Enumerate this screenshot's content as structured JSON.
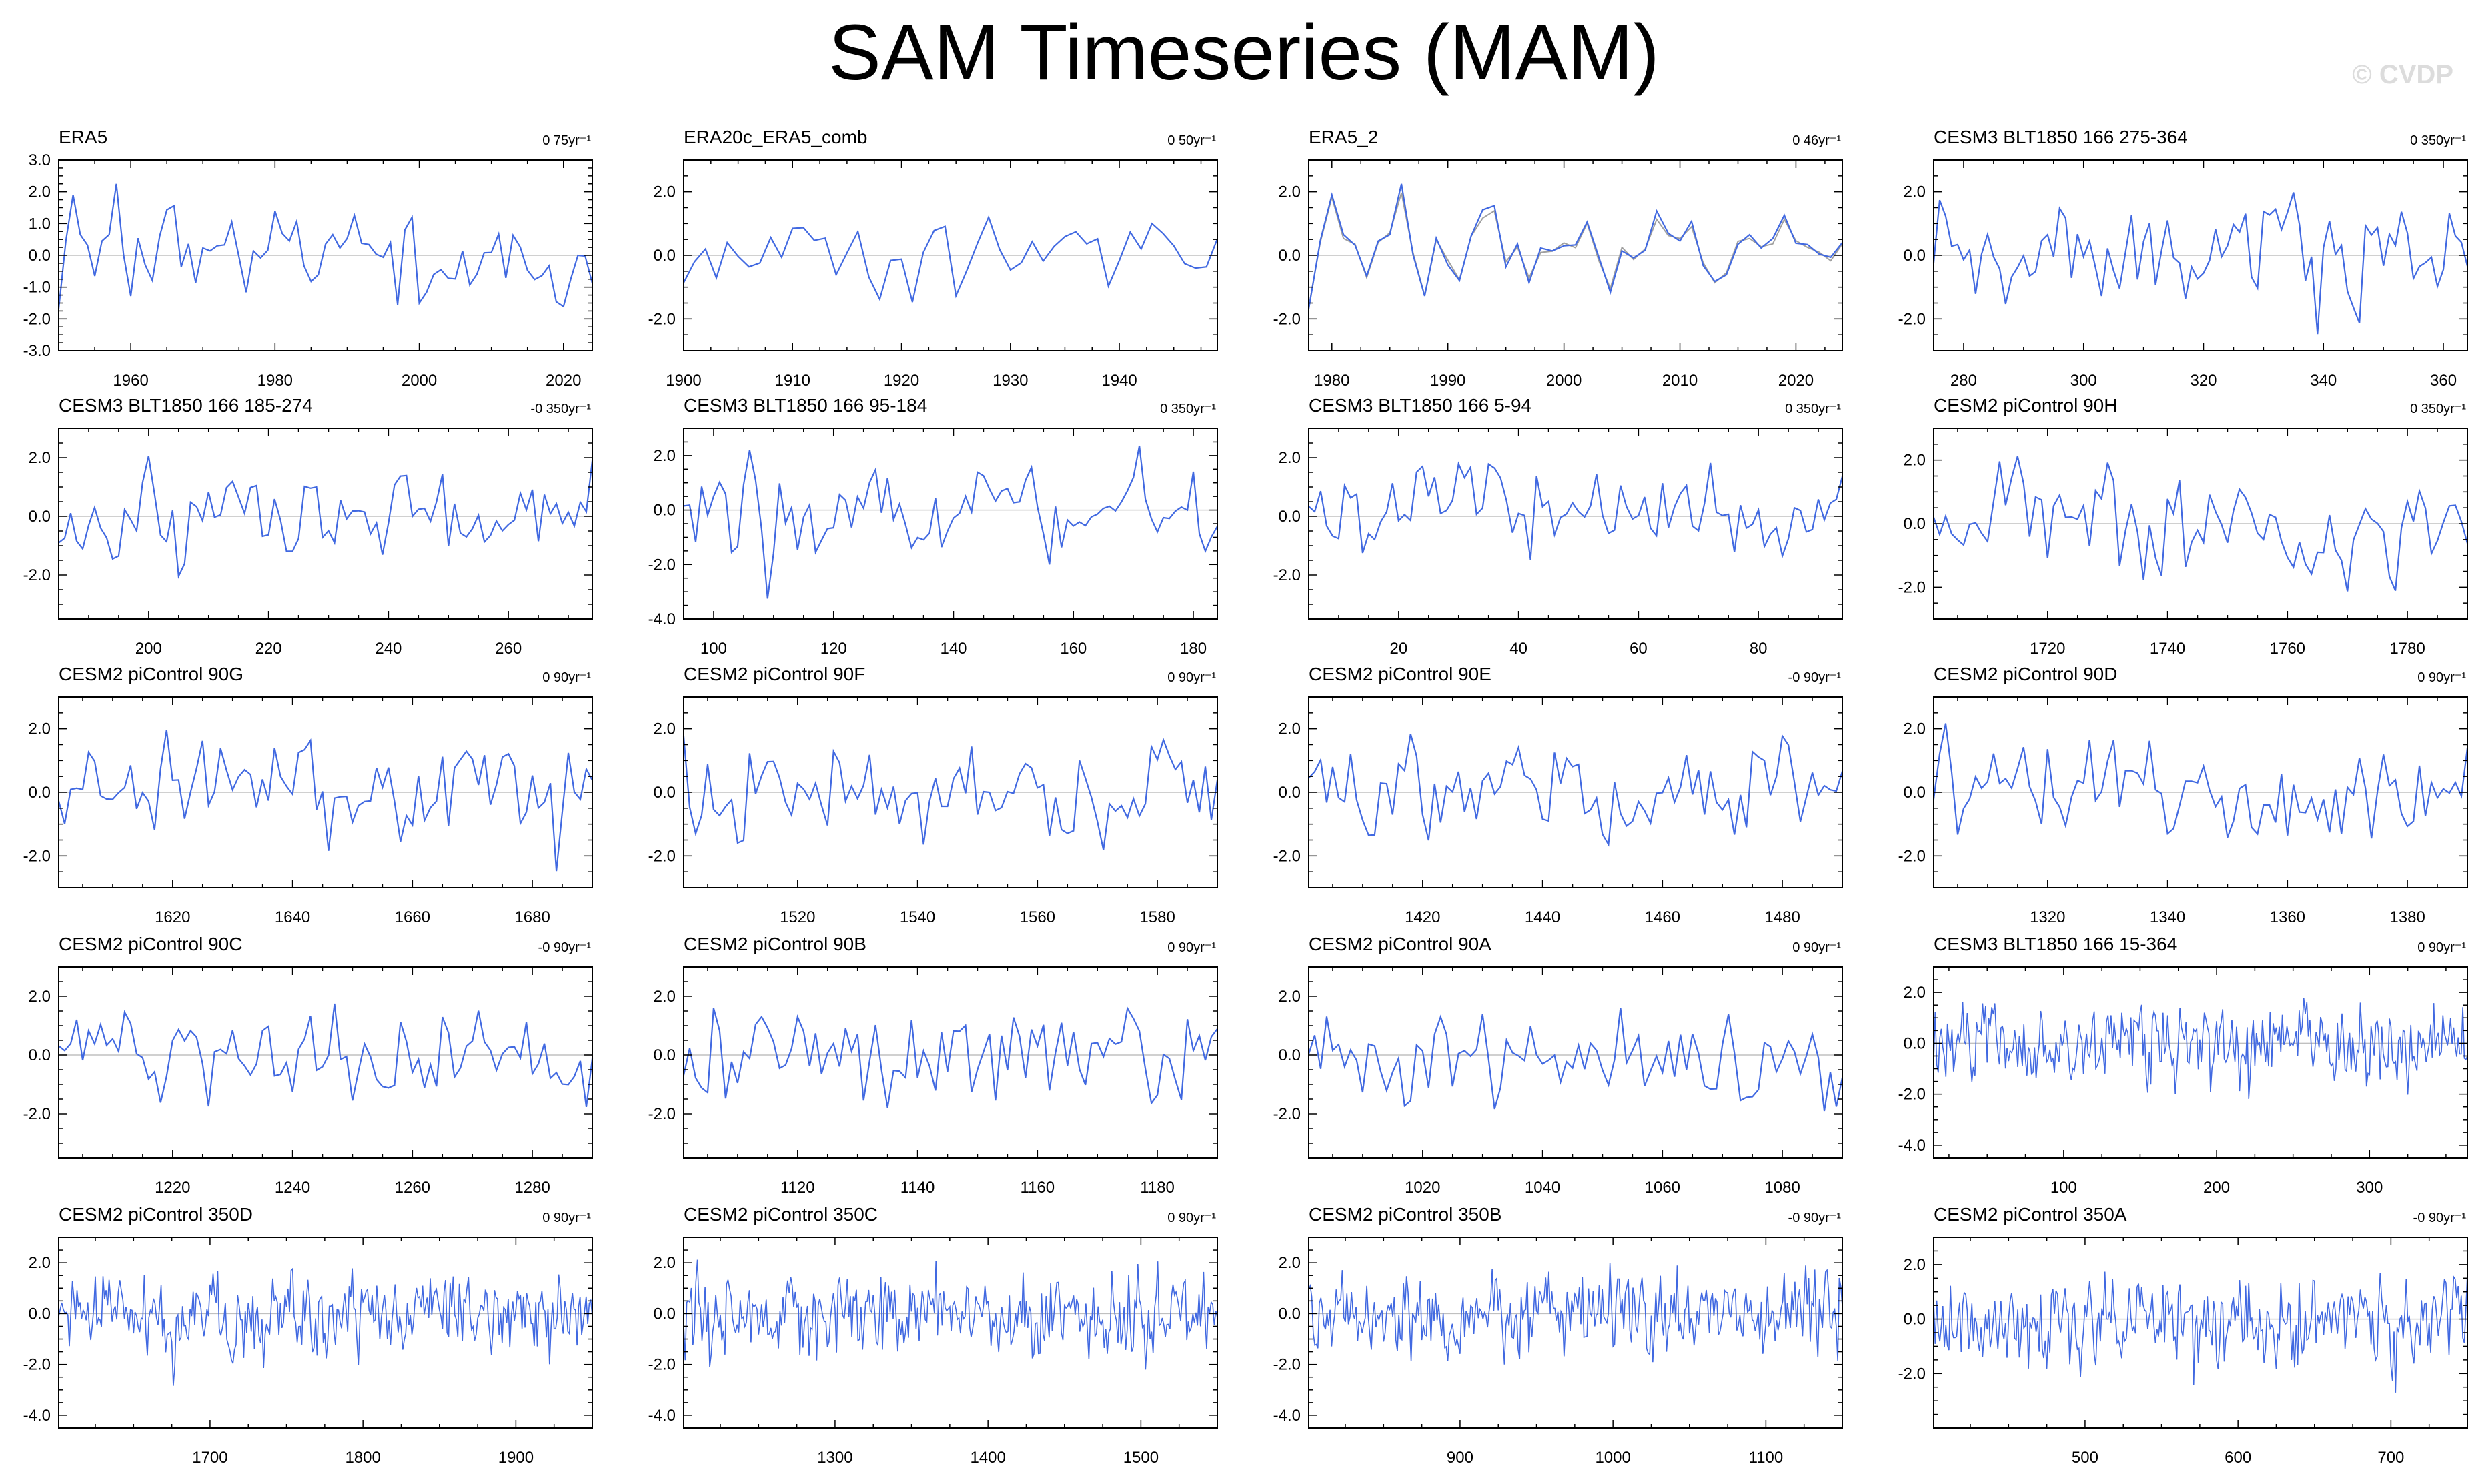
{
  "title": "SAM Timeseries (MAM)",
  "watermark": "© CVDP",
  "colors": {
    "line": "#4169e1",
    "obs2": "#a0a0a0",
    "zero": "#c0c0c0",
    "axis": "#000000"
  },
  "chart_data": [
    {
      "type": "line",
      "title": "ERA5",
      "trend": "0 75yr⁻¹",
      "xlim": [
        1950,
        2024
      ],
      "ylim": [
        -3.0,
        3.0
      ],
      "xticks": [
        1960,
        1980,
        2000,
        2020
      ],
      "yticks": [
        3.0,
        2.0,
        1.0,
        0.0,
        -1.0,
        -2.0,
        -3.0
      ],
      "x_start": 1950,
      "x_step": 1,
      "seed": 11,
      "amp": 0.95,
      "n": 75
    },
    {
      "type": "line",
      "title": "ERA20c_ERA5_comb",
      "trend": "0 50yr⁻¹",
      "xlim": [
        1900,
        1949
      ],
      "ylim": [
        -3.0,
        3.0
      ],
      "xticks": [
        1900,
        1910,
        1920,
        1930,
        1940
      ],
      "yticks": [
        2.0,
        0.0,
        -2.0
      ],
      "x_start": 1900,
      "x_step": 1,
      "seed": 23,
      "amp": 0.85,
      "n": 50
    },
    {
      "type": "line",
      "title": "ERA5_2",
      "trend": "0 46yr⁻¹",
      "xlim": [
        1978,
        2024
      ],
      "ylim": [
        -3.0,
        3.0
      ],
      "xticks": [
        1980,
        1990,
        2000,
        2010,
        2020
      ],
      "yticks": [
        2.0,
        0.0,
        -2.0
      ],
      "x_start": 1978,
      "x_step": 1,
      "seed": 11,
      "amp": 0.95,
      "n": 47,
      "second_series": true
    },
    {
      "type": "line",
      "title": "CESM3 BLT1850 166 275-364",
      "trend": "0 350yr⁻¹",
      "xlim": [
        275,
        364
      ],
      "ylim": [
        -3.0,
        3.0
      ],
      "xticks": [
        280,
        300,
        320,
        340,
        360
      ],
      "yticks": [
        2.0,
        0.0,
        -2.0
      ],
      "x_start": 275,
      "x_step": 1,
      "seed": 37,
      "amp": 0.95,
      "n": 90
    },
    {
      "type": "line",
      "title": "CESM3 BLT1850 166 185-274",
      "trend": "-0 350yr⁻¹",
      "xlim": [
        185,
        274
      ],
      "ylim": [
        -3.5,
        3.0
      ],
      "xticks": [
        200,
        220,
        240,
        260
      ],
      "yticks": [
        2.0,
        0.0,
        -2.0
      ],
      "x_start": 185,
      "x_step": 1,
      "seed": 41,
      "amp": 0.95,
      "n": 90
    },
    {
      "type": "line",
      "title": "CESM3 BLT1850 166 95-184",
      "trend": "0 350yr⁻¹",
      "xlim": [
        95,
        184
      ],
      "ylim": [
        -4.0,
        3.0
      ],
      "xticks": [
        100,
        120,
        140,
        160,
        180
      ],
      "yticks": [
        2.0,
        0.0,
        -2.0,
        -4.0
      ],
      "x_start": 95,
      "x_step": 1,
      "seed": 53,
      "amp": 0.95,
      "n": 90
    },
    {
      "type": "line",
      "title": "CESM3 BLT1850 166 5-94",
      "trend": "0 350yr⁻¹",
      "xlim": [
        5,
        94
      ],
      "ylim": [
        -3.5,
        3.0
      ],
      "xticks": [
        20,
        40,
        60,
        80
      ],
      "yticks": [
        2.0,
        0.0,
        -2.0
      ],
      "x_start": 5,
      "x_step": 1,
      "seed": 61,
      "amp": 0.95,
      "n": 90
    },
    {
      "type": "line",
      "title": "CESM2 piControl 90H",
      "trend": "0 350yr⁻¹",
      "xlim": [
        1701,
        1790
      ],
      "ylim": [
        -3.0,
        3.0
      ],
      "xticks": [
        1720,
        1740,
        1760,
        1780
      ],
      "yticks": [
        2.0,
        0.0,
        -2.0
      ],
      "x_start": 1701,
      "x_step": 1,
      "seed": 71,
      "amp": 0.95,
      "n": 90
    },
    {
      "type": "line",
      "title": "CESM2 piControl 90G",
      "trend": "0 90yr⁻¹",
      "xlim": [
        1601,
        1690
      ],
      "ylim": [
        -3.0,
        3.0
      ],
      "xticks": [
        1620,
        1640,
        1660,
        1680
      ],
      "yticks": [
        2.0,
        0.0,
        -2.0
      ],
      "x_start": 1601,
      "x_step": 1,
      "seed": 83,
      "amp": 0.95,
      "n": 90
    },
    {
      "type": "line",
      "title": "CESM2 piControl 90F",
      "trend": "0 90yr⁻¹",
      "xlim": [
        1501,
        1590
      ],
      "ylim": [
        -3.0,
        3.0
      ],
      "xticks": [
        1520,
        1540,
        1560,
        1580
      ],
      "yticks": [
        2.0,
        0.0,
        -2.0
      ],
      "x_start": 1501,
      "x_step": 1,
      "seed": 89,
      "amp": 0.95,
      "n": 90
    },
    {
      "type": "line",
      "title": "CESM2 piControl 90E",
      "trend": "-0 90yr⁻¹",
      "xlim": [
        1401,
        1490
      ],
      "ylim": [
        -3.0,
        3.0
      ],
      "xticks": [
        1420,
        1440,
        1460,
        1480
      ],
      "yticks": [
        2.0,
        0.0,
        -2.0
      ],
      "x_start": 1401,
      "x_step": 1,
      "seed": 97,
      "amp": 0.95,
      "n": 90
    },
    {
      "type": "line",
      "title": "CESM2 piControl 90D",
      "trend": "0 90yr⁻¹",
      "xlim": [
        1301,
        1390
      ],
      "ylim": [
        -3.0,
        3.0
      ],
      "xticks": [
        1320,
        1340,
        1360,
        1380
      ],
      "yticks": [
        2.0,
        0.0,
        -2.0
      ],
      "x_start": 1301,
      "x_step": 1,
      "seed": 101,
      "amp": 0.95,
      "n": 90
    },
    {
      "type": "line",
      "title": "CESM2 piControl 90C",
      "trend": "-0 90yr⁻¹",
      "xlim": [
        1201,
        1290
      ],
      "ylim": [
        -3.5,
        3.0
      ],
      "xticks": [
        1220,
        1240,
        1260,
        1280
      ],
      "yticks": [
        2.0,
        0.0,
        -2.0
      ],
      "x_start": 1201,
      "x_step": 1,
      "seed": 107,
      "amp": 0.95,
      "n": 90
    },
    {
      "type": "line",
      "title": "CESM2 piControl 90B",
      "trend": "0 90yr⁻¹",
      "xlim": [
        1101,
        1190
      ],
      "ylim": [
        -3.5,
        3.0
      ],
      "xticks": [
        1120,
        1140,
        1160,
        1180
      ],
      "yticks": [
        2.0,
        0.0,
        -2.0
      ],
      "x_start": 1101,
      "x_step": 1,
      "seed": 113,
      "amp": 0.95,
      "n": 90
    },
    {
      "type": "line",
      "title": "CESM2 piControl 90A",
      "trend": "0 90yr⁻¹",
      "xlim": [
        1001,
        1090
      ],
      "ylim": [
        -3.5,
        3.0
      ],
      "xticks": [
        1020,
        1040,
        1060,
        1080
      ],
      "yticks": [
        2.0,
        0.0,
        -2.0
      ],
      "x_start": 1001,
      "x_step": 1,
      "seed": 127,
      "amp": 0.95,
      "n": 90
    },
    {
      "type": "line",
      "title": "CESM3 BLT1850 166 15-364",
      "trend": "0 90yr⁻¹",
      "xlim": [
        15,
        364
      ],
      "ylim": [
        -4.5,
        3.0
      ],
      "xticks": [
        100,
        200,
        300
      ],
      "yticks": [
        2.0,
        0.0,
        -2.0,
        -4.0
      ],
      "x_start": 15,
      "x_step": 1,
      "seed": 131,
      "amp": 0.95,
      "n": 350
    },
    {
      "type": "line",
      "title": "CESM2 piControl 350D",
      "trend": "0 90yr⁻¹",
      "xlim": [
        1601,
        1950
      ],
      "ylim": [
        -4.5,
        3.0
      ],
      "xticks": [
        1700,
        1800,
        1900
      ],
      "yticks": [
        2.0,
        0.0,
        -2.0,
        -4.0
      ],
      "x_start": 1601,
      "x_step": 1,
      "seed": 137,
      "amp": 0.95,
      "n": 350
    },
    {
      "type": "line",
      "title": "CESM2 piControl 350C",
      "trend": "0 90yr⁻¹",
      "xlim": [
        1201,
        1550
      ],
      "ylim": [
        -4.5,
        3.0
      ],
      "xticks": [
        1300,
        1400,
        1500
      ],
      "yticks": [
        2.0,
        0.0,
        -2.0,
        -4.0
      ],
      "x_start": 1201,
      "x_step": 1,
      "seed": 139,
      "amp": 0.95,
      "n": 350
    },
    {
      "type": "line",
      "title": "CESM2 piControl 350B",
      "trend": "-0 90yr⁻¹",
      "xlim": [
        801,
        1150
      ],
      "ylim": [
        -4.5,
        3.0
      ],
      "xticks": [
        900,
        1000,
        1100
      ],
      "yticks": [
        2.0,
        0.0,
        -2.0,
        -4.0
      ],
      "x_start": 801,
      "x_step": 1,
      "seed": 149,
      "amp": 0.95,
      "n": 350
    },
    {
      "type": "line",
      "title": "CESM2 piControl 350A",
      "trend": "-0 90yr⁻¹",
      "xlim": [
        401,
        750
      ],
      "ylim": [
        -4.0,
        3.0
      ],
      "xticks": [
        500,
        600,
        700
      ],
      "yticks": [
        2.0,
        0.0,
        -2.0
      ],
      "x_start": 401,
      "x_step": 1,
      "seed": 151,
      "amp": 0.95,
      "n": 350
    }
  ]
}
